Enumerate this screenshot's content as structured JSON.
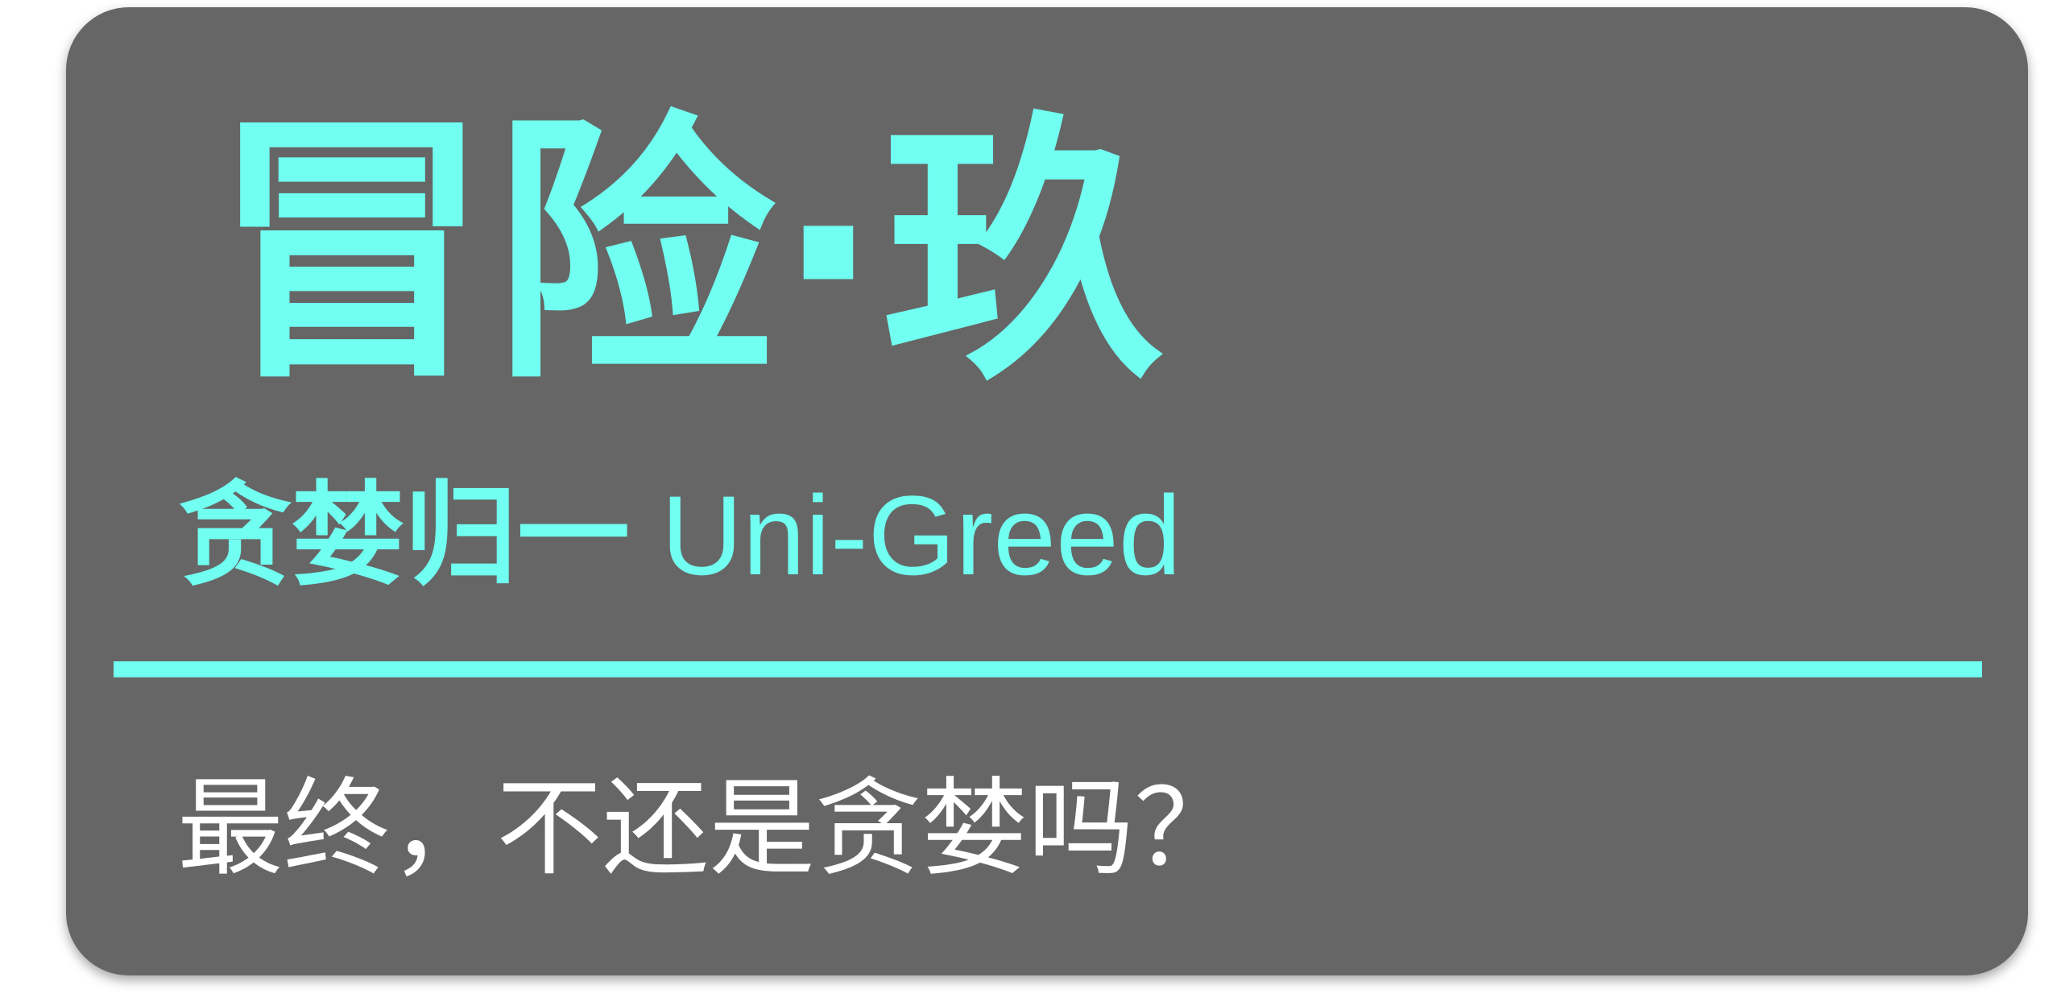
{
  "title": "冒险·玖",
  "subtitle_cn": "贪婪归一",
  "subtitle_en": "Uni-Greed",
  "question": "最终，不还是贪婪吗？",
  "colors": {
    "background": "#666666",
    "accent": "#70FFF0",
    "text": "#FFFFFF"
  }
}
